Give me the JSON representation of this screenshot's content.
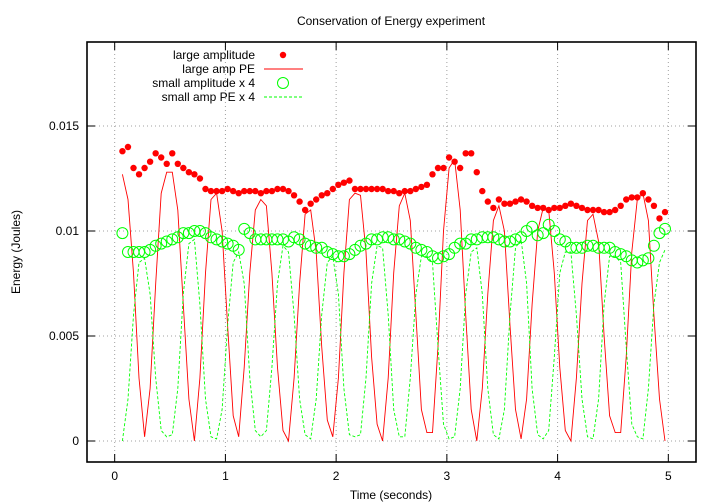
{
  "chart_data": {
    "type": "scatter",
    "title": "Conservation of Energy experiment",
    "xlabel": "Time (seconds)",
    "ylabel": "Energy (Joules)",
    "xlim": [
      -0.25,
      5.25
    ],
    "ylim": [
      -0.001,
      0.019
    ],
    "xticks": [
      0,
      1,
      2,
      3,
      4,
      5
    ],
    "xtick_labels": [
      "0",
      "1",
      "2",
      "3",
      "4",
      "5"
    ],
    "yticks": [
      0,
      0.005,
      0.01,
      0.015
    ],
    "ytick_labels": [
      "0",
      "0.005",
      "0.01",
      "0.015"
    ],
    "grid": true,
    "legend_position": "top-left",
    "x_start": 0.07,
    "x_step": 0.05,
    "series": [
      {
        "name": "large amplitude",
        "style": "points",
        "color": "#ff0000",
        "values": [
          0.0138,
          0.014,
          0.013,
          0.0127,
          0.013,
          0.0133,
          0.0137,
          0.0135,
          0.0132,
          0.0137,
          0.0132,
          0.013,
          0.0128,
          0.0127,
          0.0125,
          0.012,
          0.0119,
          0.0119,
          0.0119,
          0.012,
          0.0119,
          0.0118,
          0.0119,
          0.0119,
          0.0119,
          0.0118,
          0.0119,
          0.0119,
          0.012,
          0.012,
          0.0119,
          0.0117,
          0.0114,
          0.011,
          0.0113,
          0.0115,
          0.0117,
          0.0118,
          0.012,
          0.0122,
          0.0123,
          0.0124,
          0.012,
          0.012,
          0.012,
          0.012,
          0.012,
          0.012,
          0.0119,
          0.0119,
          0.0118,
          0.0119,
          0.0119,
          0.012,
          0.0121,
          0.0122,
          0.0127,
          0.013,
          0.013,
          0.0135,
          0.0133,
          0.013,
          0.0137,
          0.0137,
          0.0128,
          0.0119,
          0.0114,
          0.0111,
          0.0115,
          0.0113,
          0.0113,
          0.0114,
          0.0115,
          0.0114,
          0.0112,
          0.0111,
          0.0111,
          0.011,
          0.0111,
          0.0111,
          0.0112,
          0.0113,
          0.0112,
          0.0111,
          0.011,
          0.011,
          0.011,
          0.0109,
          0.0109,
          0.011,
          0.0112,
          0.0115,
          0.0116,
          0.0116,
          0.0118,
          0.0115,
          0.0112,
          0.0106,
          0.0109
        ]
      },
      {
        "name": "large amp PE",
        "style": "line",
        "color": "#ff0000",
        "values": [
          0.0127,
          0.0115,
          0.008,
          0.003,
          0.0002,
          0.0025,
          0.0075,
          0.0118,
          0.0128,
          0.0128,
          0.011,
          0.0065,
          0.002,
          0.0,
          0.003,
          0.008,
          0.0115,
          0.0118,
          0.01,
          0.0055,
          0.0012,
          0.0002,
          0.0035,
          0.008,
          0.011,
          0.0115,
          0.0112,
          0.008,
          0.0035,
          0.0005,
          0.0,
          0.003,
          0.0075,
          0.0108,
          0.011,
          0.009,
          0.0045,
          0.001,
          0.0002,
          0.003,
          0.008,
          0.0115,
          0.0118,
          0.0117,
          0.009,
          0.004,
          0.0008,
          0.0,
          0.003,
          0.008,
          0.0112,
          0.0118,
          0.0105,
          0.006,
          0.0015,
          0.0004,
          0.0004,
          0.0045,
          0.01,
          0.013,
          0.0134,
          0.011,
          0.006,
          0.0015,
          0.0,
          0.0025,
          0.007,
          0.0105,
          0.0112,
          0.01,
          0.0055,
          0.0015,
          0.0001,
          0.002,
          0.0065,
          0.01,
          0.0111,
          0.011,
          0.008,
          0.0035,
          0.0005,
          0.0,
          0.003,
          0.0075,
          0.0105,
          0.0108,
          0.0095,
          0.005,
          0.0012,
          0.0004,
          0.0004,
          0.004,
          0.009,
          0.0115,
          0.0118,
          0.0105,
          0.006,
          0.002,
          0.0
        ]
      },
      {
        "name": "small amplitude x 4",
        "style": "circles",
        "color": "#00ff00",
        "values": [
          0.0099,
          0.009,
          0.009,
          0.009,
          0.009,
          0.0091,
          0.0093,
          0.0094,
          0.0095,
          0.0096,
          0.0097,
          0.0099,
          0.0099,
          0.01,
          0.01,
          0.0099,
          0.0097,
          0.0096,
          0.0095,
          0.0094,
          0.0093,
          0.0091,
          0.0101,
          0.0099,
          0.0096,
          0.0096,
          0.0096,
          0.0096,
          0.0096,
          0.0096,
          0.0095,
          0.0097,
          0.0096,
          0.0094,
          0.0093,
          0.0092,
          0.0092,
          0.009,
          0.0089,
          0.0088,
          0.0088,
          0.0089,
          0.0091,
          0.0093,
          0.0094,
          0.0096,
          0.0096,
          0.0097,
          0.0097,
          0.0096,
          0.0096,
          0.0095,
          0.0094,
          0.0092,
          0.0091,
          0.009,
          0.0088,
          0.0087,
          0.0088,
          0.0089,
          0.0092,
          0.0094,
          0.0094,
          0.0096,
          0.0096,
          0.0097,
          0.0097,
          0.0097,
          0.0096,
          0.0095,
          0.0095,
          0.0096,
          0.0097,
          0.01,
          0.0102,
          0.0098,
          0.0099,
          0.0103,
          0.01,
          0.0096,
          0.0095,
          0.0092,
          0.0092,
          0.0092,
          0.0093,
          0.0093,
          0.0092,
          0.0092,
          0.0092,
          0.009,
          0.0089,
          0.0088,
          0.0086,
          0.0085,
          0.0086,
          0.0087,
          0.0093,
          0.0099,
          0.0101
        ]
      },
      {
        "name": "small amp PE x 4",
        "style": "dashed-line",
        "color": "#00ff00",
        "values": [
          0.0,
          0.002,
          0.006,
          0.0085,
          0.0087,
          0.007,
          0.003,
          0.0005,
          0.0002,
          0.0003,
          0.0025,
          0.007,
          0.0094,
          0.0096,
          0.0065,
          0.002,
          0.0002,
          0.0001,
          0.0015,
          0.0055,
          0.0085,
          0.009,
          0.0075,
          0.003,
          0.0005,
          0.0002,
          0.0005,
          0.0035,
          0.0075,
          0.0093,
          0.009,
          0.006,
          0.002,
          0.0003,
          0.0001,
          0.002,
          0.006,
          0.0085,
          0.0088,
          0.007,
          0.0025,
          0.0003,
          0.0002,
          0.0003,
          0.003,
          0.0075,
          0.0093,
          0.0092,
          0.006,
          0.0015,
          0.0002,
          0.0002,
          0.003,
          0.007,
          0.0088,
          0.0088,
          0.0085,
          0.0045,
          0.0008,
          0.0001,
          0.0002,
          0.0025,
          0.007,
          0.009,
          0.0092,
          0.007,
          0.0025,
          0.0003,
          0.0001,
          0.0015,
          0.006,
          0.0092,
          0.0096,
          0.0075,
          0.0025,
          0.0003,
          0.0001,
          0.0005,
          0.004,
          0.008,
          0.009,
          0.009,
          0.006,
          0.002,
          0.0002,
          0.0001,
          0.002,
          0.0065,
          0.0088,
          0.0088,
          0.0085,
          0.0045,
          0.0008,
          0.0002,
          0.0001,
          0.0025,
          0.0065,
          0.0085,
          0.0091
        ]
      }
    ]
  }
}
